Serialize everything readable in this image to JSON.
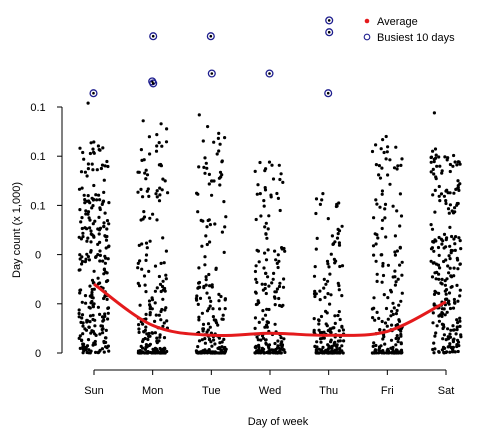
{
  "chart_data": {
    "type": "scatter",
    "title": "",
    "xlabel": "Day of week",
    "ylabel": "Day count (x 1,000)",
    "categories": [
      "Sun",
      "Mon",
      "Tue",
      "Wed",
      "Thu",
      "Fri",
      "Sat"
    ],
    "ytick_labels": [
      "0",
      "0",
      "0",
      "0.1",
      "0.1",
      "0.1"
    ],
    "ylim": [
      0,
      0.25
    ],
    "grid": false,
    "legend": {
      "position": "top-right",
      "entries": [
        {
          "label": "Average",
          "color": "#e41a1c",
          "marker": "filled-dot"
        },
        {
          "label": "Busiest 10 days",
          "color": "#1f1f8f",
          "marker": "open-circle"
        }
      ]
    },
    "series": [
      {
        "name": "Average",
        "color": "#e41a1c",
        "values": [
          0.035,
          0.014,
          0.009,
          0.01,
          0.009,
          0.011,
          0.026
        ]
      },
      {
        "name": "Busiest 10 days",
        "color": "#1f1f8f",
        "points": [
          {
            "day": "Sun",
            "value": 0.132
          },
          {
            "day": "Mon",
            "value": 0.161
          },
          {
            "day": "Mon",
            "value": 0.138
          },
          {
            "day": "Mon",
            "value": 0.137
          },
          {
            "day": "Tue",
            "value": 0.161
          },
          {
            "day": "Tue",
            "value": 0.142
          },
          {
            "day": "Wed",
            "value": 0.142
          },
          {
            "day": "Thu",
            "value": 0.169
          },
          {
            "day": "Thu",
            "value": 0.132
          },
          {
            "day": "Thu",
            "value": 0.163
          }
        ]
      }
    ],
    "daily_points_color": "#000000",
    "daily_points_max_by_day": [
      0.127,
      0.118,
      0.121,
      0.097,
      0.081,
      0.11,
      0.122
    ]
  }
}
